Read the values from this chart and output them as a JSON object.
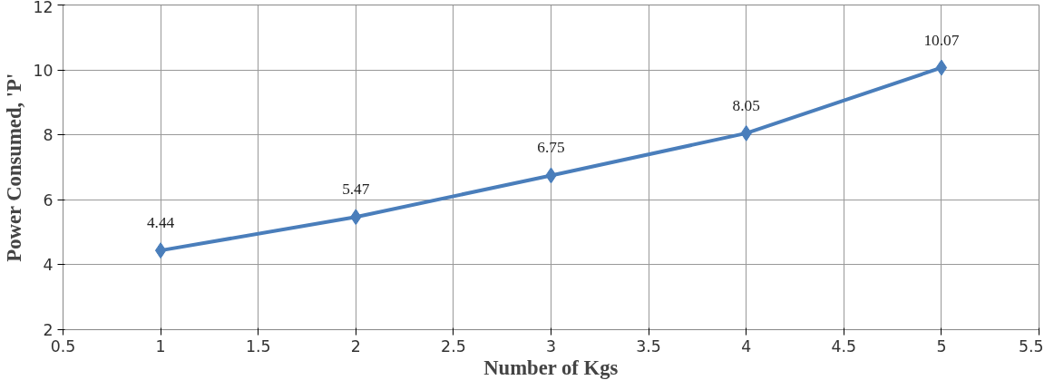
{
  "chart_data": {
    "type": "line",
    "xlabel": "Number of Kgs",
    "ylabel": "Power Consumed, 'P'",
    "x": [
      1,
      2,
      3,
      4,
      5
    ],
    "series": [
      {
        "color": "#4a7ebb",
        "values": [
          4.44,
          5.47,
          6.75,
          8.05,
          10.07
        ]
      }
    ],
    "xlim": [
      0.5,
      5.5
    ],
    "xticks": [
      0.5,
      1,
      1.5,
      2,
      2.5,
      3,
      3.5,
      4,
      4.5,
      5,
      5.5
    ],
    "ylim": [
      2,
      12
    ],
    "yticks": [
      2,
      4,
      6,
      8,
      10,
      12
    ],
    "grid": true,
    "marker": "diamond",
    "line_style": "solid",
    "data_labels": true
  }
}
